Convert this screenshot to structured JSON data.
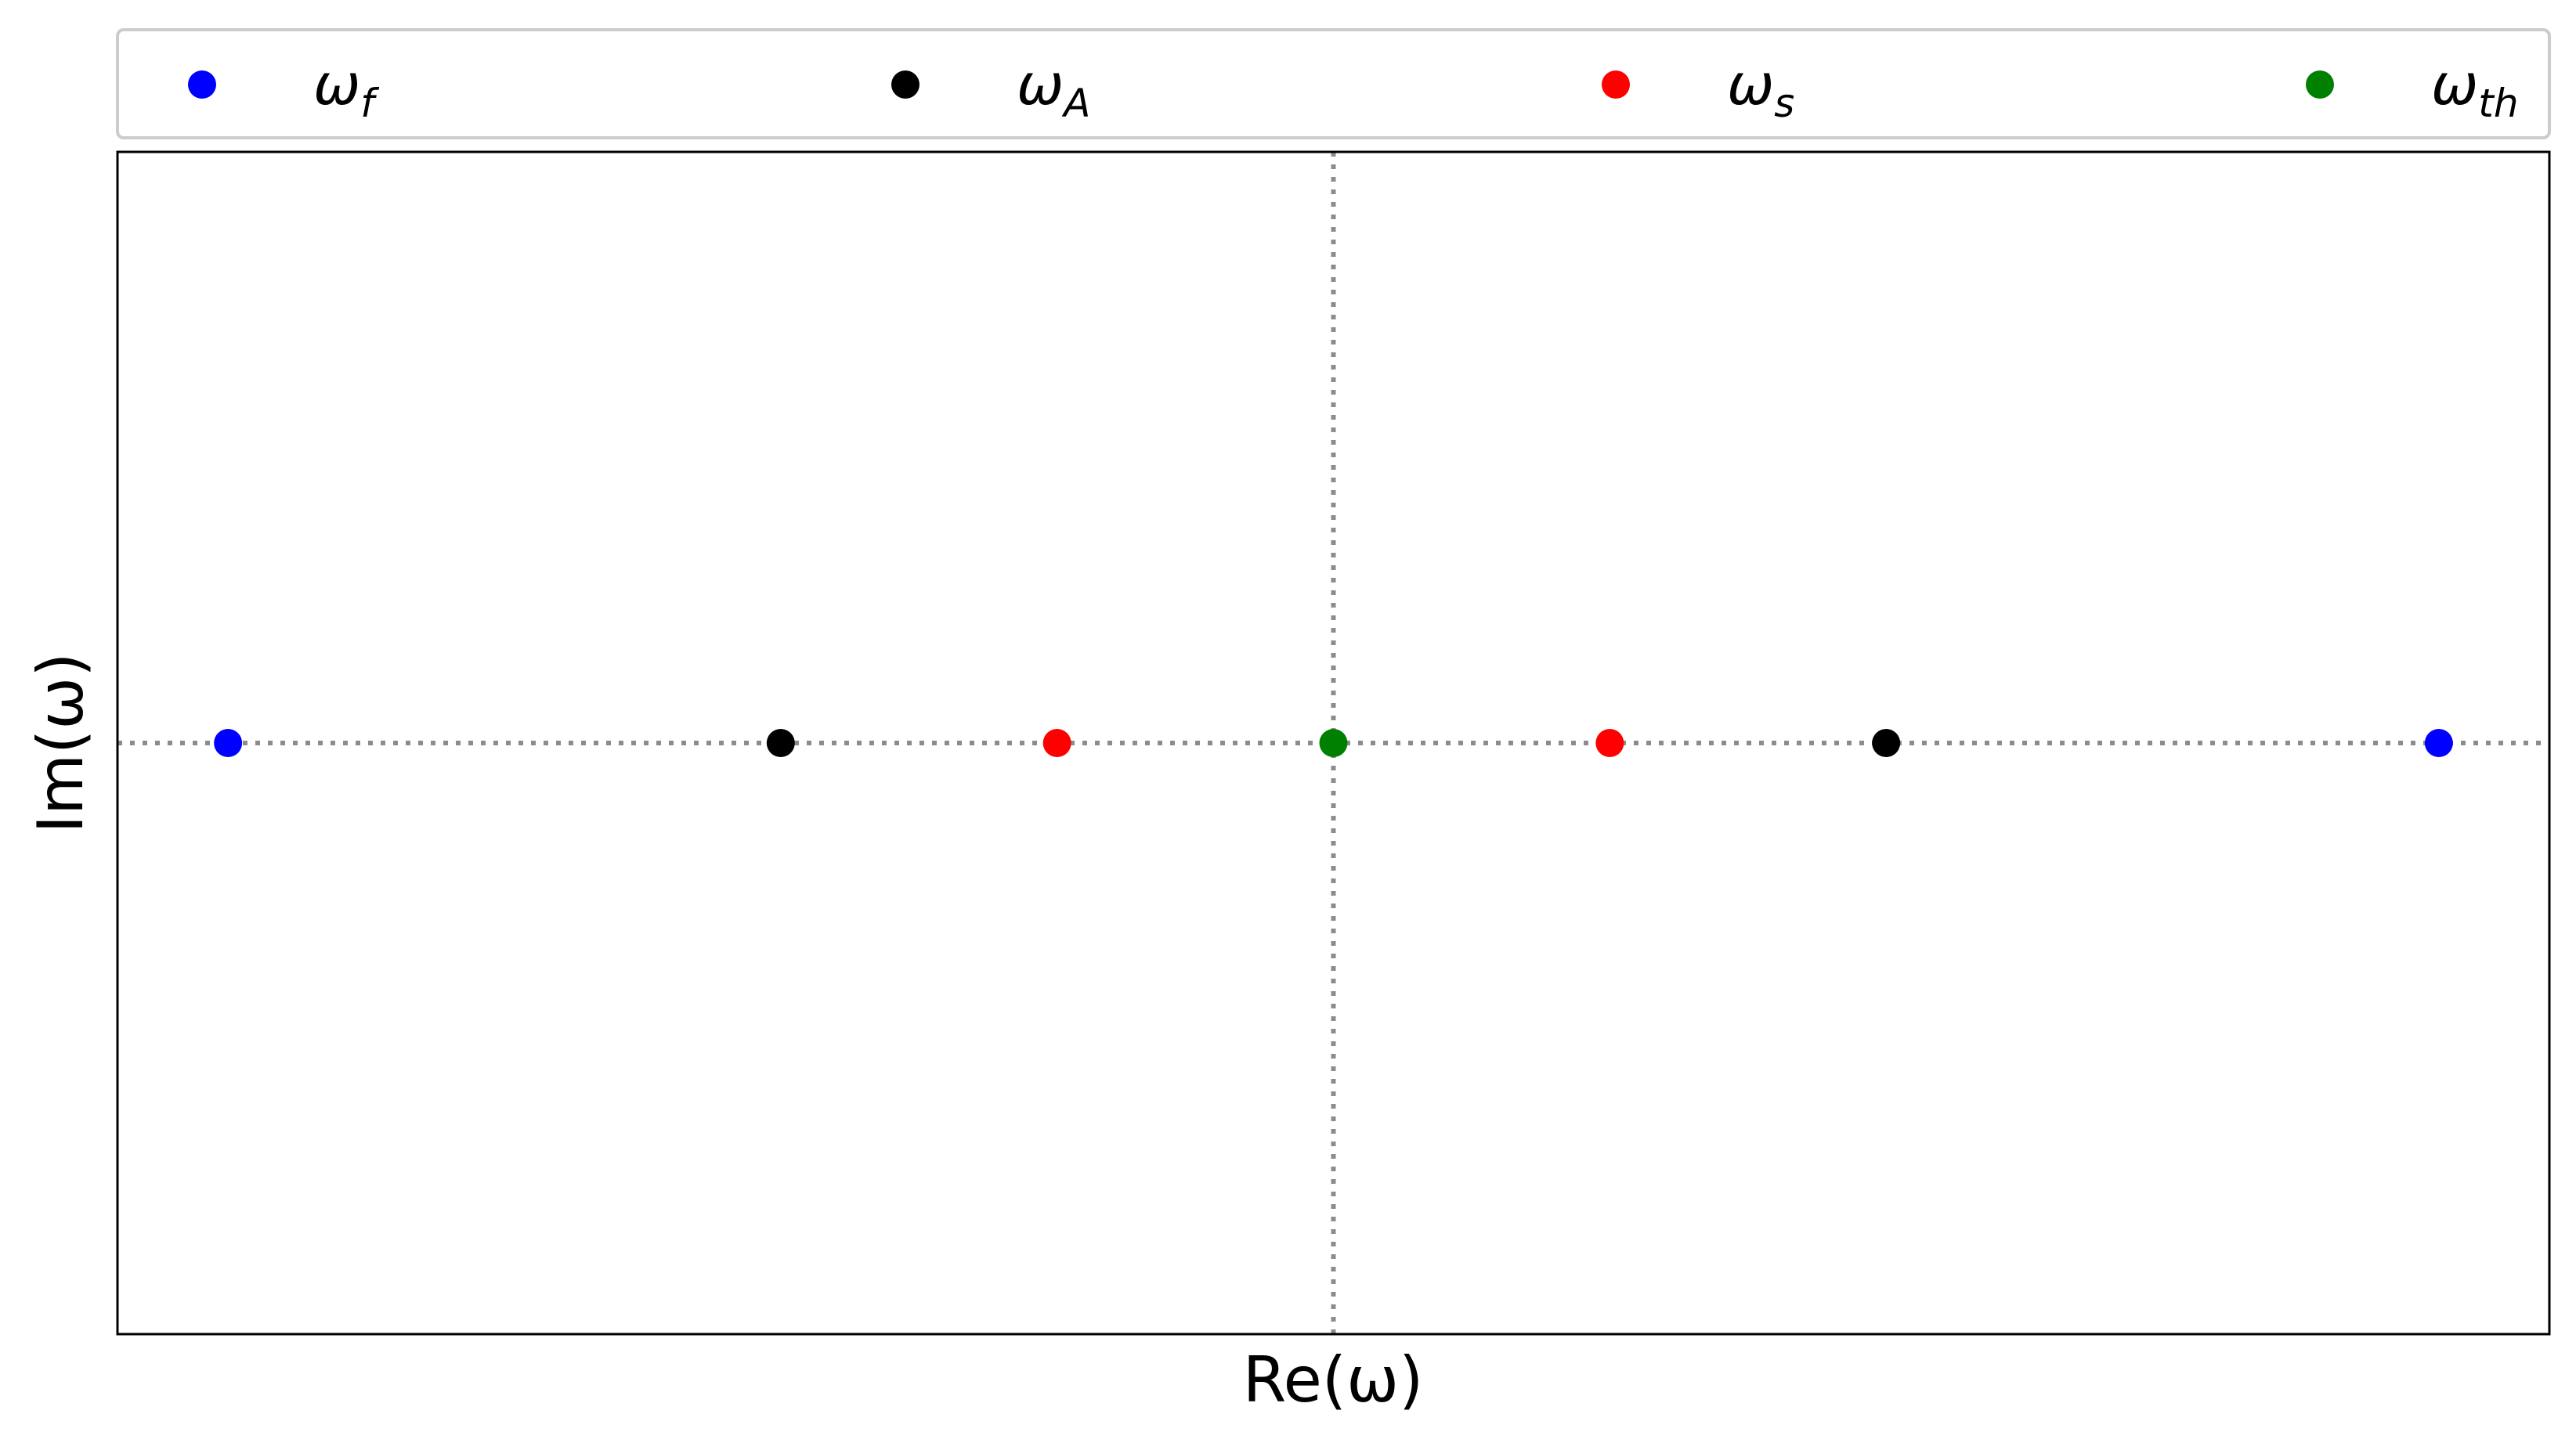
{
  "chart_data": {
    "type": "scatter",
    "xlabel": "Re(ω)",
    "ylabel": "Im(ω)",
    "xlim": [
      -4.4,
      4.4
    ],
    "ylim": [
      -1,
      1
    ],
    "show_ticks": false,
    "reference_lines": {
      "x": 0,
      "y": 0,
      "style": "dotted",
      "color": "#8c8c8c"
    },
    "legend": {
      "placement": "top",
      "columns": 4
    },
    "series": [
      {
        "name": "ω",
        "subscript": "f",
        "color": "#0000ff",
        "points": [
          [
            -4,
            0
          ],
          [
            4,
            0
          ]
        ]
      },
      {
        "name": "ω",
        "subscript": "A",
        "color": "#000000",
        "points": [
          [
            -2,
            0
          ],
          [
            2,
            0
          ]
        ]
      },
      {
        "name": "ω",
        "subscript": "s",
        "color": "#ff0000",
        "points": [
          [
            -1,
            0
          ],
          [
            1,
            0
          ]
        ]
      },
      {
        "name": "ω",
        "subscript": "th",
        "color": "#008000",
        "points": [
          [
            0,
            0
          ]
        ]
      }
    ]
  }
}
